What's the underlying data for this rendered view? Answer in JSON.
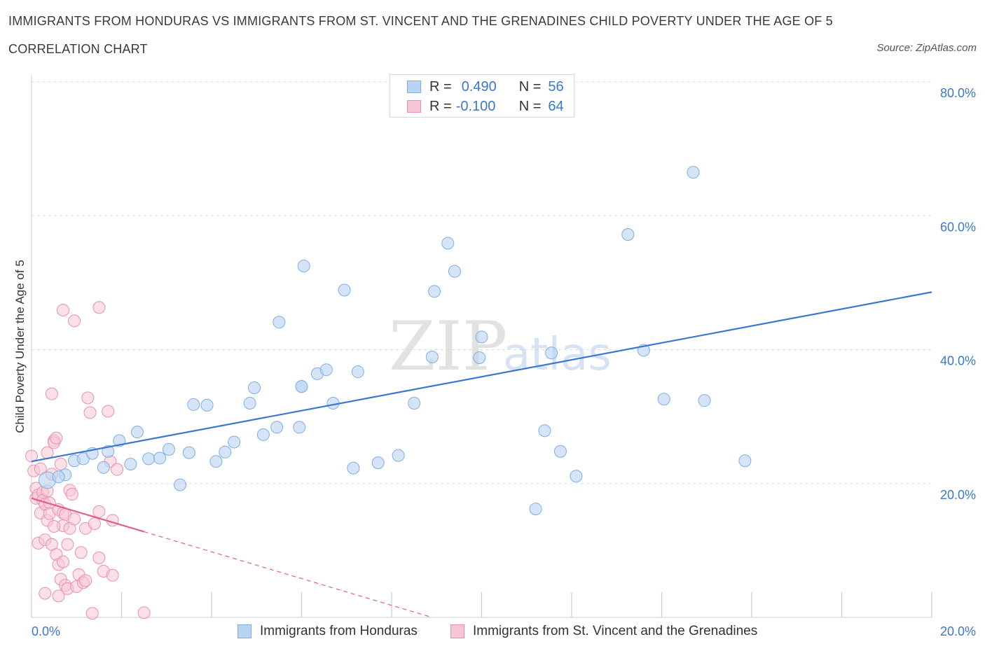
{
  "title": "IMMIGRANTS FROM HONDURAS VS IMMIGRANTS FROM ST. VINCENT AND THE GRENADINES CHILD POVERTY UNDER THE AGE OF 5",
  "subtitle": "CORRELATION CHART",
  "source": "Source: ZipAtlas.com",
  "watermark": {
    "zip": "ZIP",
    "atlas": "atlas"
  },
  "legend": {
    "r_label": "R =",
    "n_label": "N =",
    "series1": {
      "r": "0.490",
      "n": "56"
    },
    "series2": {
      "r": "-0.100",
      "n": "64"
    }
  },
  "colors": {
    "blue_fill": "#b9d3f2",
    "blue_stroke": "#7eaee6",
    "blue_line": "#3a78d0",
    "pink_fill": "#f7c6d5",
    "pink_stroke": "#ec8fae",
    "pink_line": "#e0608d",
    "axis_text": "#3b78c8",
    "grid": "#dddddd"
  },
  "chart_data": {
    "type": "scatter",
    "title": "IMMIGRANTS FROM HONDURAS VS IMMIGRANTS FROM ST. VINCENT AND THE GRENADINES CHILD POVERTY UNDER THE AGE OF 5",
    "xlabel": "",
    "ylabel": "Child Poverty Under the Age of 5",
    "xlim": [
      0,
      20
    ],
    "ylim": [
      0,
      80
    ],
    "x_tick_labels": [
      "0.0%",
      "20.0%"
    ],
    "y_tick_labels": [
      "20.0%",
      "40.0%",
      "60.0%",
      "80.0%"
    ],
    "y_ticks": [
      20,
      40,
      60,
      80
    ],
    "grid": true,
    "legend_position": "top-center",
    "series": [
      {
        "name": "Immigrants from Honduras",
        "color": "#b9d3f2",
        "r": 0.49,
        "n": 56,
        "trend": {
          "x0": 0,
          "y0": 23.3,
          "x1": 20,
          "y1": 48.6
        },
        "points": [
          [
            0.35,
            20.5
          ],
          [
            0.75,
            21.3
          ],
          [
            0.95,
            23.4
          ],
          [
            1.15,
            23.7
          ],
          [
            1.35,
            24.5
          ],
          [
            1.6,
            22.4
          ],
          [
            1.7,
            24.8
          ],
          [
            1.95,
            26.4
          ],
          [
            2.2,
            22.9
          ],
          [
            2.35,
            27.7
          ],
          [
            2.6,
            23.7
          ],
          [
            2.85,
            23.8
          ],
          [
            3.05,
            25.1
          ],
          [
            3.3,
            19.8
          ],
          [
            3.5,
            24.6
          ],
          [
            3.6,
            31.8
          ],
          [
            3.9,
            31.7
          ],
          [
            4.1,
            23.3
          ],
          [
            4.3,
            24.7
          ],
          [
            4.5,
            26.2
          ],
          [
            4.85,
            32.0
          ],
          [
            4.95,
            34.3
          ],
          [
            5.15,
            27.3
          ],
          [
            5.45,
            28.4
          ],
          [
            5.5,
            44.1
          ],
          [
            5.95,
            28.4
          ],
          [
            6.0,
            34.5
          ],
          [
            6.0,
            34.5
          ],
          [
            6.05,
            52.5
          ],
          [
            6.35,
            36.4
          ],
          [
            6.55,
            37.0
          ],
          [
            6.7,
            32.0
          ],
          [
            6.95,
            48.9
          ],
          [
            7.15,
            22.3
          ],
          [
            7.25,
            36.7
          ],
          [
            7.7,
            23.1
          ],
          [
            8.15,
            24.2
          ],
          [
            8.5,
            32.0
          ],
          [
            8.9,
            38.9
          ],
          [
            8.95,
            48.7
          ],
          [
            9.25,
            55.9
          ],
          [
            9.4,
            51.7
          ],
          [
            9.95,
            38.8
          ],
          [
            10.0,
            41.9
          ],
          [
            11.2,
            16.2
          ],
          [
            11.4,
            27.9
          ],
          [
            11.55,
            39.5
          ],
          [
            11.75,
            24.8
          ],
          [
            12.1,
            21.1
          ],
          [
            13.25,
            57.2
          ],
          [
            13.6,
            39.9
          ],
          [
            14.05,
            32.6
          ],
          [
            14.7,
            66.5
          ],
          [
            14.95,
            32.4
          ],
          [
            15.85,
            23.4
          ],
          [
            0.6,
            21.0
          ]
        ]
      },
      {
        "name": "Immigrants from St. Vincent and the Grenadines",
        "color": "#f7c6d5",
        "r": -0.1,
        "n": 64,
        "trend": {
          "x0": 0,
          "y0": 17.8,
          "x1": 2.5,
          "y1": 12.8,
          "dash_x1": 8.9,
          "dash_y1": 0
        },
        "points": [
          [
            0.0,
            24.1
          ],
          [
            0.05,
            21.9
          ],
          [
            0.1,
            19.3
          ],
          [
            0.1,
            17.8
          ],
          [
            0.15,
            18.3
          ],
          [
            0.15,
            11.1
          ],
          [
            0.2,
            15.6
          ],
          [
            0.2,
            22.2
          ],
          [
            0.25,
            18.7
          ],
          [
            0.25,
            17.5
          ],
          [
            0.3,
            16.9
          ],
          [
            0.3,
            11.6
          ],
          [
            0.3,
            3.6
          ],
          [
            0.35,
            14.5
          ],
          [
            0.35,
            24.6
          ],
          [
            0.35,
            18.9
          ],
          [
            0.4,
            17.1
          ],
          [
            0.4,
            15.5
          ],
          [
            0.45,
            21.4
          ],
          [
            0.45,
            10.9
          ],
          [
            0.45,
            33.4
          ],
          [
            0.5,
            26.4
          ],
          [
            0.5,
            26.1
          ],
          [
            0.55,
            9.4
          ],
          [
            0.55,
            26.8
          ],
          [
            0.6,
            7.9
          ],
          [
            0.6,
            16.1
          ],
          [
            0.6,
            3.2
          ],
          [
            0.65,
            5.7
          ],
          [
            0.65,
            22.9
          ],
          [
            0.7,
            13.7
          ],
          [
            0.7,
            15.6
          ],
          [
            0.7,
            8.3
          ],
          [
            0.7,
            45.9
          ],
          [
            0.75,
            15.4
          ],
          [
            0.75,
            4.8
          ],
          [
            0.8,
            10.9
          ],
          [
            0.8,
            4.3
          ],
          [
            0.85,
            19.0
          ],
          [
            0.85,
            13.3
          ],
          [
            0.9,
            18.4
          ],
          [
            0.95,
            44.3
          ],
          [
            1.0,
            4.6
          ],
          [
            1.05,
            6.4
          ],
          [
            1.1,
            9.7
          ],
          [
            1.15,
            5.2
          ],
          [
            1.2,
            13.3
          ],
          [
            1.2,
            5.5
          ],
          [
            1.25,
            32.8
          ],
          [
            1.3,
            30.6
          ],
          [
            1.35,
            0.6
          ],
          [
            1.4,
            14.0
          ],
          [
            1.5,
            8.9
          ],
          [
            1.5,
            46.3
          ],
          [
            1.5,
            15.8
          ],
          [
            1.6,
            6.9
          ],
          [
            1.7,
            30.8
          ],
          [
            1.75,
            23.3
          ],
          [
            1.8,
            14.5
          ],
          [
            1.8,
            6.3
          ],
          [
            1.9,
            22.1
          ],
          [
            2.5,
            0.7
          ],
          [
            0.95,
            14.7
          ],
          [
            0.5,
            13.6
          ]
        ]
      }
    ]
  },
  "bottom_legend": {
    "series1_label": "Immigrants from Honduras",
    "series2_label": "Immigrants from St. Vincent and the Grenadines"
  }
}
